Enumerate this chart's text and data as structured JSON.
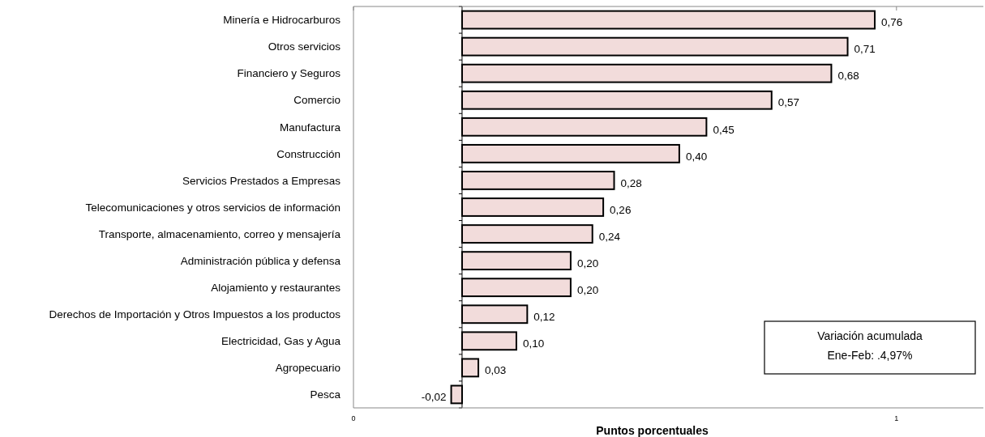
{
  "chart_data": {
    "type": "bar",
    "orientation": "horizontal",
    "xlabel": "Puntos porcentuales",
    "categories": [
      "Minería e Hidrocarburos",
      "Otros servicios",
      "Financiero y Seguros",
      "Comercio",
      "Manufactura",
      "Construcción",
      "Servicios Prestados a Empresas",
      "Telecomunicaciones y otros servicios de información",
      "Transporte, almacenamiento, correo y mensajería",
      "Administración pública y defensa",
      "Alojamiento y restaurantes",
      "Derechos de Importación y Otros Impuestos a los productos",
      "Electricidad, Gas y Agua",
      "Agropecuario",
      "Pesca"
    ],
    "values": [
      0.76,
      0.71,
      0.68,
      0.57,
      0.45,
      0.4,
      0.28,
      0.26,
      0.24,
      0.2,
      0.2,
      0.12,
      0.1,
      0.03,
      -0.02
    ],
    "value_labels": [
      "0,76",
      "0,71",
      "0,68",
      "0,57",
      "0,45",
      "0,40",
      "0,28",
      "0,26",
      "0,24",
      "0,20",
      "0,20",
      "0,12",
      "0,10",
      "0,03",
      "-0,02"
    ],
    "color": "#f2dcdb",
    "xlim": [
      -0.2,
      0.96
    ],
    "x2lim": [
      0,
      1.16
    ],
    "x2ticks": [
      0,
      1
    ],
    "annotations": [
      "Variación acumulada",
      "Ene-Feb: .4,97%"
    ],
    "tick_labels": "x"
  }
}
